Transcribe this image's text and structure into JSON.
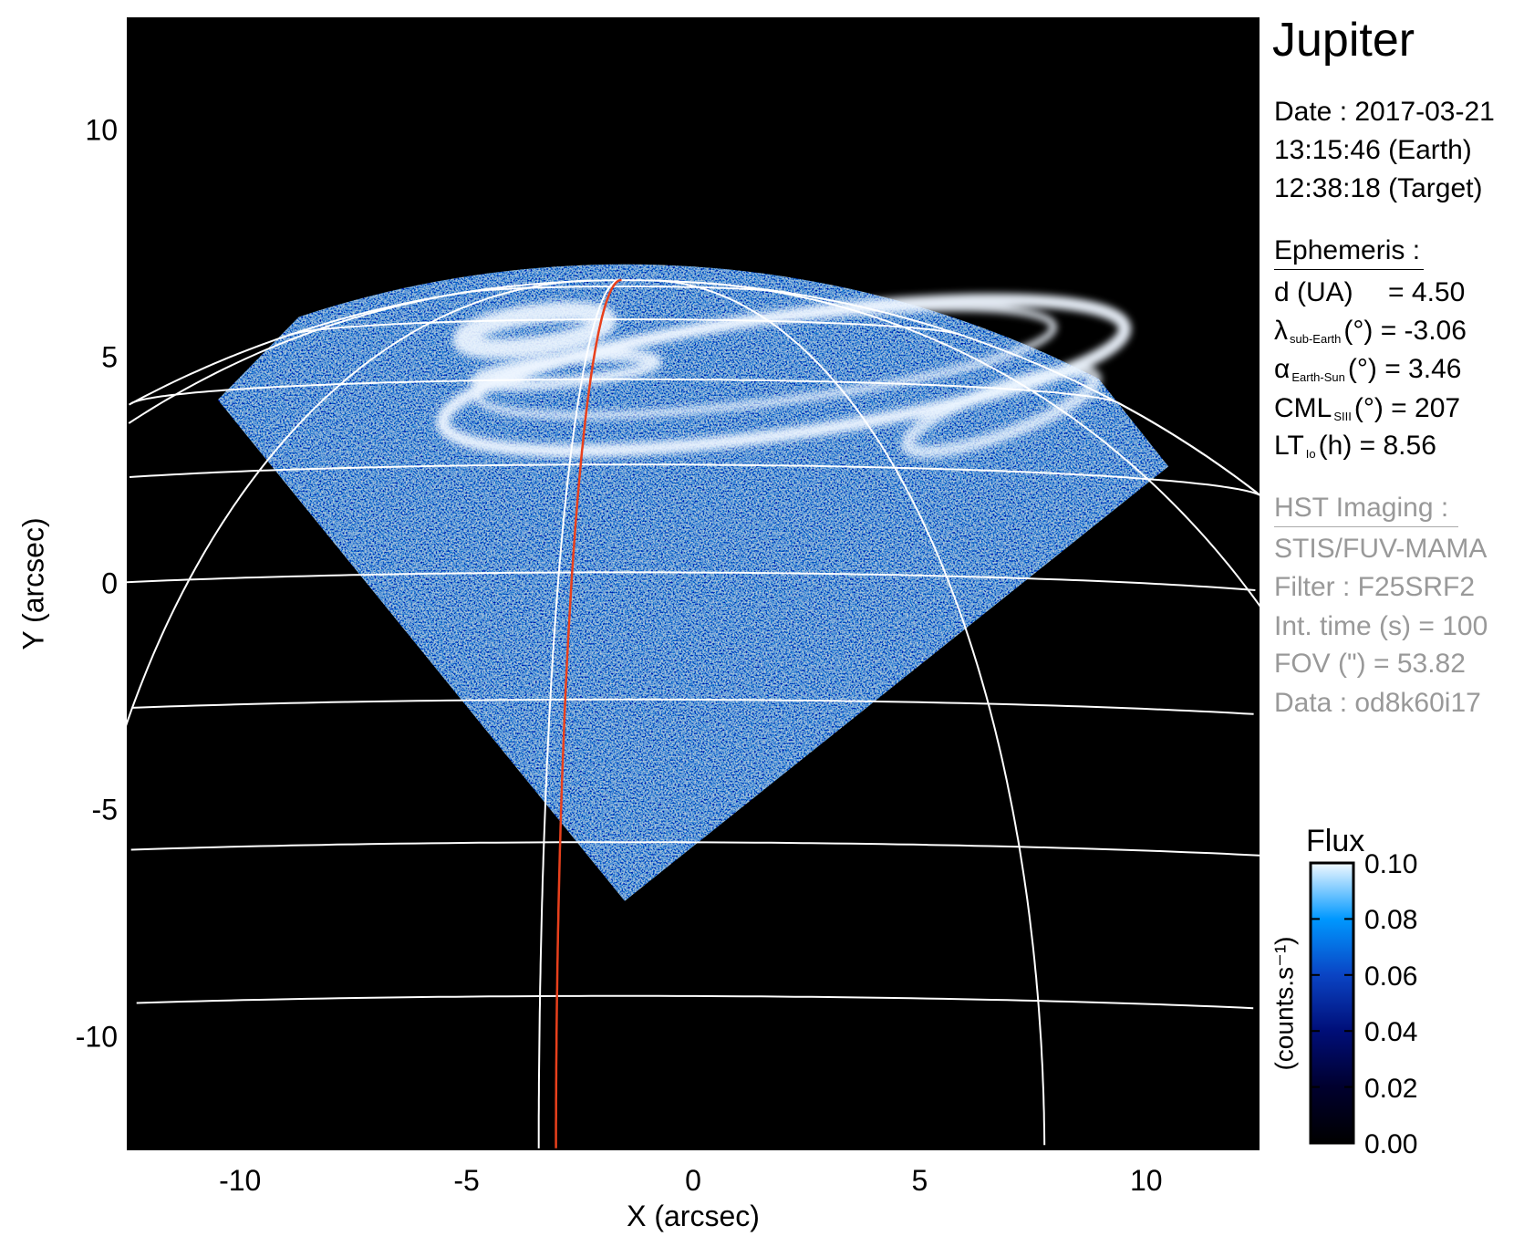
{
  "title": "Jupiter",
  "observation": {
    "date": "Date : 2017-03-21",
    "time_earth": "13:15:46 (Earth)",
    "time_target": "12:38:18 (Target)"
  },
  "ephemeris": {
    "heading": "Ephemeris :",
    "items": [
      {
        "symbol": "d (UA)",
        "sub": "",
        "rest": "    = 4.50"
      },
      {
        "symbol": "λ",
        "sub": "sub-Earth",
        "rest": "(°) = -3.06"
      },
      {
        "symbol": "α",
        "sub": "Earth-Sun",
        "rest": "(°) = 3.46"
      },
      {
        "symbol": "CML",
        "sub": "SIII",
        "rest": "(°) = 207"
      },
      {
        "symbol": "LT",
        "sub": "Io",
        "rest": "(h) = 8.56"
      }
    ]
  },
  "imaging": {
    "heading": "HST Imaging :",
    "lines": [
      "STIS/FUV-MAMA",
      "Filter : F25SRF2",
      "Int. time (s) = 100",
      "FOV (\") = 53.82",
      "Data : od8k60i17"
    ]
  },
  "chart_data": {
    "type": "heatmap",
    "xlabel": "X (arcsec)",
    "ylabel": "Y (arcsec)",
    "xlim": [
      -12.5,
      12.5
    ],
    "ylim": [
      -12.5,
      12.5
    ],
    "xticks": [
      "-10",
      "-5",
      "0",
      "5",
      "10"
    ],
    "xtick_values": [
      -10,
      -5,
      0,
      5,
      10
    ],
    "yticks": [
      "10",
      "5",
      "0",
      "-5",
      "-10"
    ],
    "ytick_values": [
      10,
      5,
      0,
      -5,
      -10
    ],
    "background_color": "#000000",
    "grid_color": "#ffffff",
    "meridian_highlight_color": "#e8401c",
    "colorbar": {
      "title": "Flux",
      "label": "(counts.s⁻¹)",
      "range": [
        0.0,
        0.1
      ],
      "ticks": [
        "0.10",
        "0.08",
        "0.06",
        "0.04",
        "0.02",
        "0.00"
      ],
      "tick_values": [
        0.1,
        0.08,
        0.06,
        0.04,
        0.02,
        0.0
      ],
      "colors": [
        "#000000",
        "#00002e",
        "#000e78",
        "#0a44c4",
        "#0098ff",
        "#f2f9ff"
      ]
    }
  }
}
